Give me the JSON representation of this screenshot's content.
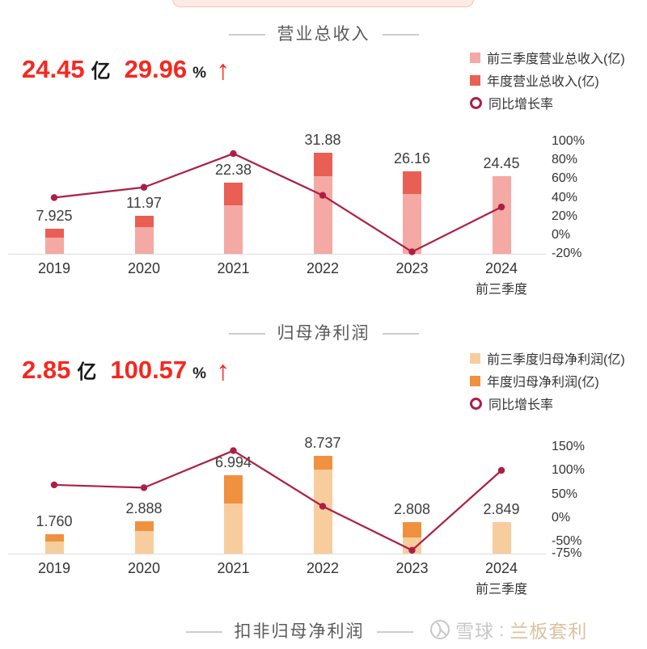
{
  "chart_data": [
    {
      "type": "bar+line",
      "title": "营业总收入",
      "stat": {
        "value": "24.45",
        "unit": "亿",
        "growth": "29.96",
        "growth_unit": "%",
        "arrow": "↑"
      },
      "categories": [
        "2019",
        "2020",
        "2021",
        "2022",
        "2023",
        "2024"
      ],
      "category_sublabels": [
        "",
        "",
        "",
        "",
        "",
        "前三季度"
      ],
      "series": [
        {
          "name": "前三季度营业总收入(亿)",
          "type": "bar",
          "role": "first-three-quarters",
          "values": [
            5.04,
            8.44,
            15.3,
            24.48,
            18.81,
            24.45
          ]
        },
        {
          "name": "年度营业总收入(亿)",
          "type": "bar",
          "role": "annual-total",
          "values": [
            7.925,
            11.97,
            22.38,
            31.88,
            26.16,
            null
          ]
        },
        {
          "name": "同比增长率",
          "type": "line",
          "axis": "right",
          "unit": "%",
          "values": [
            40.0,
            51.0,
            87.0,
            42.4,
            -17.9,
            29.96
          ]
        }
      ],
      "bar_labels": [
        "7.925",
        "11.97",
        "22.38",
        "31.88",
        "26.16",
        "24.45"
      ],
      "right_axis": {
        "ticks": [
          100,
          80,
          60,
          40,
          20,
          0,
          -20
        ],
        "suffix": "%",
        "min": -20,
        "max": 100
      },
      "left_axis_visible": false,
      "grid": false,
      "legend_position": "top-right",
      "legend": [
        {
          "label": "前三季度营业总收入(亿)",
          "marker": "square-light"
        },
        {
          "label": "年度营业总收入(亿)",
          "marker": "square-dark"
        },
        {
          "label": "同比增长率",
          "marker": "ring"
        }
      ]
    },
    {
      "type": "bar+line",
      "title": "归母净利润",
      "stat": {
        "value": "2.85",
        "unit": "亿",
        "growth": "100.57",
        "growth_unit": "%",
        "arrow": "↑"
      },
      "categories": [
        "2019",
        "2020",
        "2021",
        "2022",
        "2023",
        "2024"
      ],
      "category_sublabels": [
        "",
        "",
        "",
        "",
        "",
        "前三季度"
      ],
      "series": [
        {
          "name": "前三季度归母净利润(亿)",
          "type": "bar",
          "role": "first-three-quarters",
          "values": [
            1.1,
            2.05,
            4.48,
            7.49,
            1.42,
            2.849
          ]
        },
        {
          "name": "年度归母净利润(亿)",
          "type": "bar",
          "role": "annual-total",
          "values": [
            1.76,
            2.888,
            6.994,
            8.737,
            2.808,
            null
          ]
        },
        {
          "name": "同比增长率",
          "type": "line",
          "axis": "right",
          "unit": "%",
          "values": [
            70.0,
            64.1,
            142.2,
            24.9,
            -67.9,
            100.57
          ]
        }
      ],
      "bar_labels": [
        "1.760",
        "2.888",
        "6.994",
        "8.737",
        "2.808",
        "2.849"
      ],
      "right_axis": {
        "ticks": [
          150,
          100,
          50,
          0,
          -50,
          -75
        ],
        "suffix": "%",
        "min": -75,
        "max": 150
      },
      "left_axis_visible": false,
      "grid": false,
      "legend_position": "top-right",
      "legend": [
        {
          "label": "前三季度归母净利润(亿)",
          "marker": "square-light"
        },
        {
          "label": "年度归母净利润(亿)",
          "marker": "square-dark"
        },
        {
          "label": "同比增长率",
          "marker": "ring"
        }
      ]
    }
  ],
  "next_section_title": "扣非归母净利润",
  "watermark": {
    "site": "雪球",
    "separator": ":",
    "name": "兰板套利"
  },
  "colors": {
    "stat_red": "#f7271f",
    "line": "#ad1e45",
    "bar_light": [
      "#f4a9a4",
      "#f8cd9d"
    ],
    "bar_dark": [
      "#e95f53",
      "#f09140"
    ],
    "axis_line": "#dddddd",
    "bar_label_text": "#3d3d3d",
    "tick_text": "#333333",
    "title_gray": "#5a5a5a",
    "watermark_gray": "#c7c7c7",
    "watermark_name": "#d9c3a3",
    "header_card_bg": "#fcebe2",
    "header_card_border": "#f3c5ab"
  }
}
